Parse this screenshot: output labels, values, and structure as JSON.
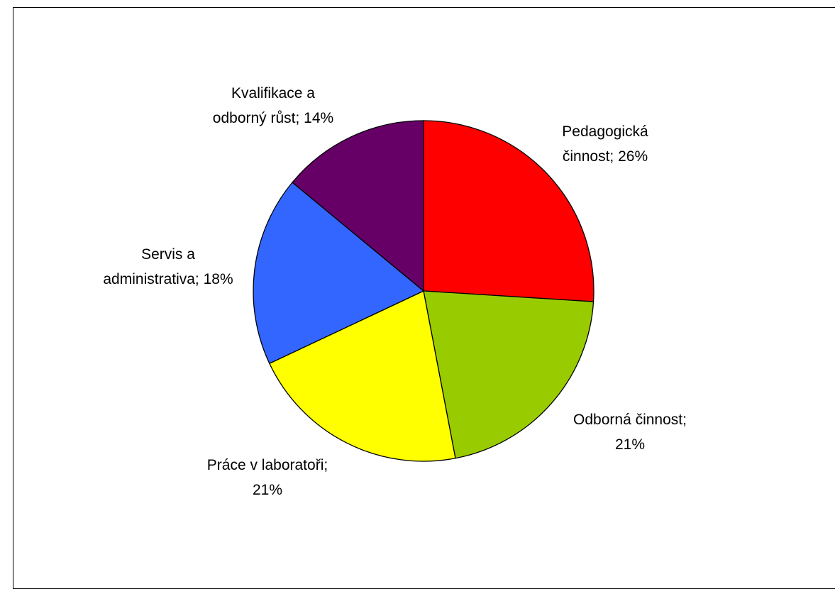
{
  "chart_data": {
    "type": "pie",
    "title": "",
    "slices": [
      {
        "label_lines": [
          "Pedagogická",
          "činnost; 26%"
        ],
        "value": 26,
        "color": "#ff0000"
      },
      {
        "label_lines": [
          "Odborná činnost;",
          "21%"
        ],
        "value": 21,
        "color": "#99cc00"
      },
      {
        "label_lines": [
          "Práce v laboratoři;",
          "21%"
        ],
        "value": 21,
        "color": "#ffff00"
      },
      {
        "label_lines": [
          "Servis a",
          "administrativa; 18%"
        ],
        "value": 18,
        "color": "#3366ff"
      },
      {
        "label_lines": [
          "Kvalifikace a",
          "odborný růst; 14%"
        ],
        "value": 14,
        "color": "#660066"
      }
    ],
    "start": "12 o'clock",
    "direction": "clockwise",
    "legend": "none"
  }
}
